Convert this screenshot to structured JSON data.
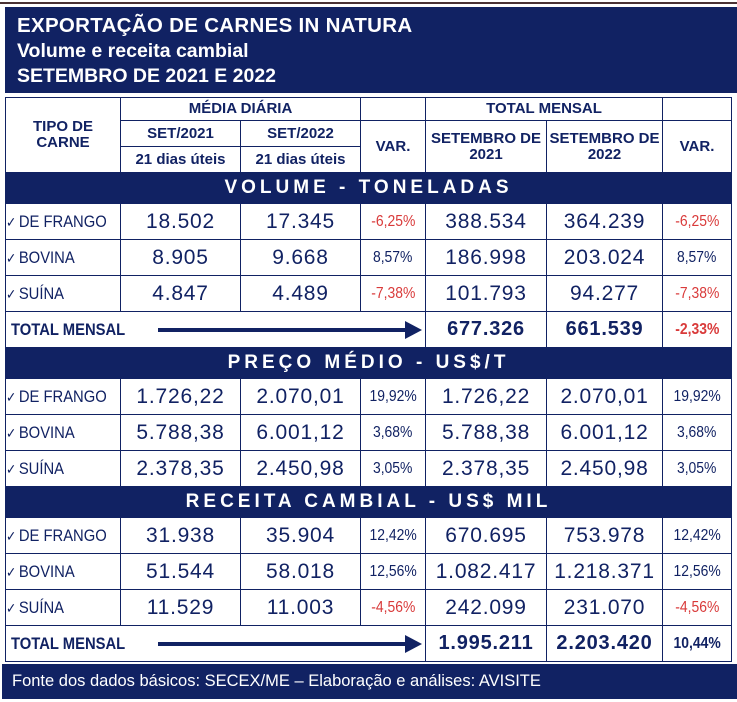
{
  "colors": {
    "navy": "#112263",
    "red": "#d93a3a",
    "top_line": "#4a3234"
  },
  "icons": {
    "check": "✓",
    "total_arrow": "right-arrow"
  },
  "title": {
    "line1": "EXPORTAÇÃO DE CARNES IN NATURA",
    "line2": "Volume e receita cambial",
    "line3": "SETEMBRO DE 2021 E 2022"
  },
  "table_header": {
    "tipo_de_carne": "TIPO DE CARNE",
    "media_diaria": "MÉDIA DIÁRIA",
    "total_mensal": "TOTAL MENSAL",
    "set_2021": "SET/2021",
    "set_2022": "SET/2022",
    "dias_uteis_2021": "21 dias úteis",
    "dias_uteis_2022": "21 dias úteis",
    "var_left": "VAR.",
    "var_right": "VAR.",
    "setembro_2021": "SETEMBRO DE 2021",
    "setembro_2022": "SETEMBRO DE 2022"
  },
  "chart_data": {
    "type": "table",
    "title": "EXPORTAÇÃO DE CARNES IN NATURA — Volume e receita cambial — SETEMBRO DE 2021 E 2022",
    "columns": [
      "TIPO DE CARNE",
      "MÉDIA DIÁRIA SET/2021 (21 dias úteis)",
      "MÉDIA DIÁRIA SET/2022 (21 dias úteis)",
      "VAR.",
      "TOTAL MENSAL SETEMBRO DE 2021",
      "TOTAL MENSAL SETEMBRO DE 2022",
      "VAR."
    ],
    "sections": [
      {
        "header": "VOLUME - TONELADAS",
        "rows": [
          {
            "label": "DE FRANGO",
            "cells": [
              "18.502",
              "17.345",
              "-6,25%",
              "388.534",
              "364.239",
              "-6,25%"
            ]
          },
          {
            "label": "BOVINA",
            "cells": [
              "8.905",
              "9.668",
              "8,57%",
              "186.998",
              "203.024",
              "8,57%"
            ]
          },
          {
            "label": "SUÍNA",
            "cells": [
              "4.847",
              "4.489",
              "-7,38%",
              "101.793",
              "94.277",
              "-7,38%"
            ]
          }
        ],
        "total": {
          "label": "TOTAL MENSAL",
          "cells": [
            "677.326",
            "661.539",
            "-2,33%"
          ]
        }
      },
      {
        "header": "PREÇO MÉDIO - US$/T",
        "rows": [
          {
            "label": "DE FRANGO",
            "cells": [
              "1.726,22",
              "2.070,01",
              "19,92%",
              "1.726,22",
              "2.070,01",
              "19,92%"
            ]
          },
          {
            "label": "BOVINA",
            "cells": [
              "5.788,38",
              "6.001,12",
              "3,68%",
              "5.788,38",
              "6.001,12",
              "3,68%"
            ]
          },
          {
            "label": "SUÍNA",
            "cells": [
              "2.378,35",
              "2.450,98",
              "3,05%",
              "2.378,35",
              "2.450,98",
              "3,05%"
            ]
          }
        ],
        "total": null
      },
      {
        "header": "RECEITA CAMBIAL - US$ MIL",
        "rows": [
          {
            "label": "DE FRANGO",
            "cells": [
              "31.938",
              "35.904",
              "12,42%",
              "670.695",
              "753.978",
              "12,42%"
            ]
          },
          {
            "label": "BOVINA",
            "cells": [
              "51.544",
              "58.018",
              "12,56%",
              "1.082.417",
              "1.218.371",
              "12,56%"
            ]
          },
          {
            "label": "SUÍNA",
            "cells": [
              "11.529",
              "11.003",
              "-4,56%",
              "242.099",
              "231.070",
              "-4,56%"
            ]
          }
        ],
        "total": {
          "label": "TOTAL MENSAL",
          "cells": [
            "1.995.211",
            "2.203.420",
            "10,44%"
          ]
        }
      }
    ]
  },
  "footer": {
    "text": "Fonte dos dados básicos: SECEX/ME – Elaboração e análises: AVISITE"
  }
}
